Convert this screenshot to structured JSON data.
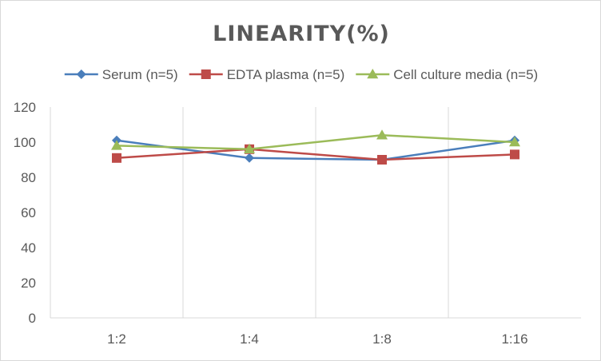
{
  "chart_data": {
    "type": "line",
    "title": "LINEARITY(%)",
    "xlabel": "",
    "ylabel": "",
    "categories": [
      "1:2",
      "1:4",
      "1:8",
      "1:16"
    ],
    "ylim": [
      0,
      120
    ],
    "yticks": [
      0,
      20,
      40,
      60,
      80,
      100,
      120
    ],
    "grid": "vertical",
    "legend_position": "top",
    "series": [
      {
        "name": "Serum (n=5)",
        "values": [
          101,
          91,
          90,
          101
        ],
        "color": "#4a7ebb",
        "marker": "diamond"
      },
      {
        "name": "EDTA plasma (n=5)",
        "values": [
          91,
          96,
          90,
          93
        ],
        "color": "#be4b48",
        "marker": "square"
      },
      {
        "name": "Cell culture media (n=5)",
        "values": [
          98,
          96,
          104,
          100
        ],
        "color": "#9bbb59",
        "marker": "triangle"
      }
    ]
  }
}
